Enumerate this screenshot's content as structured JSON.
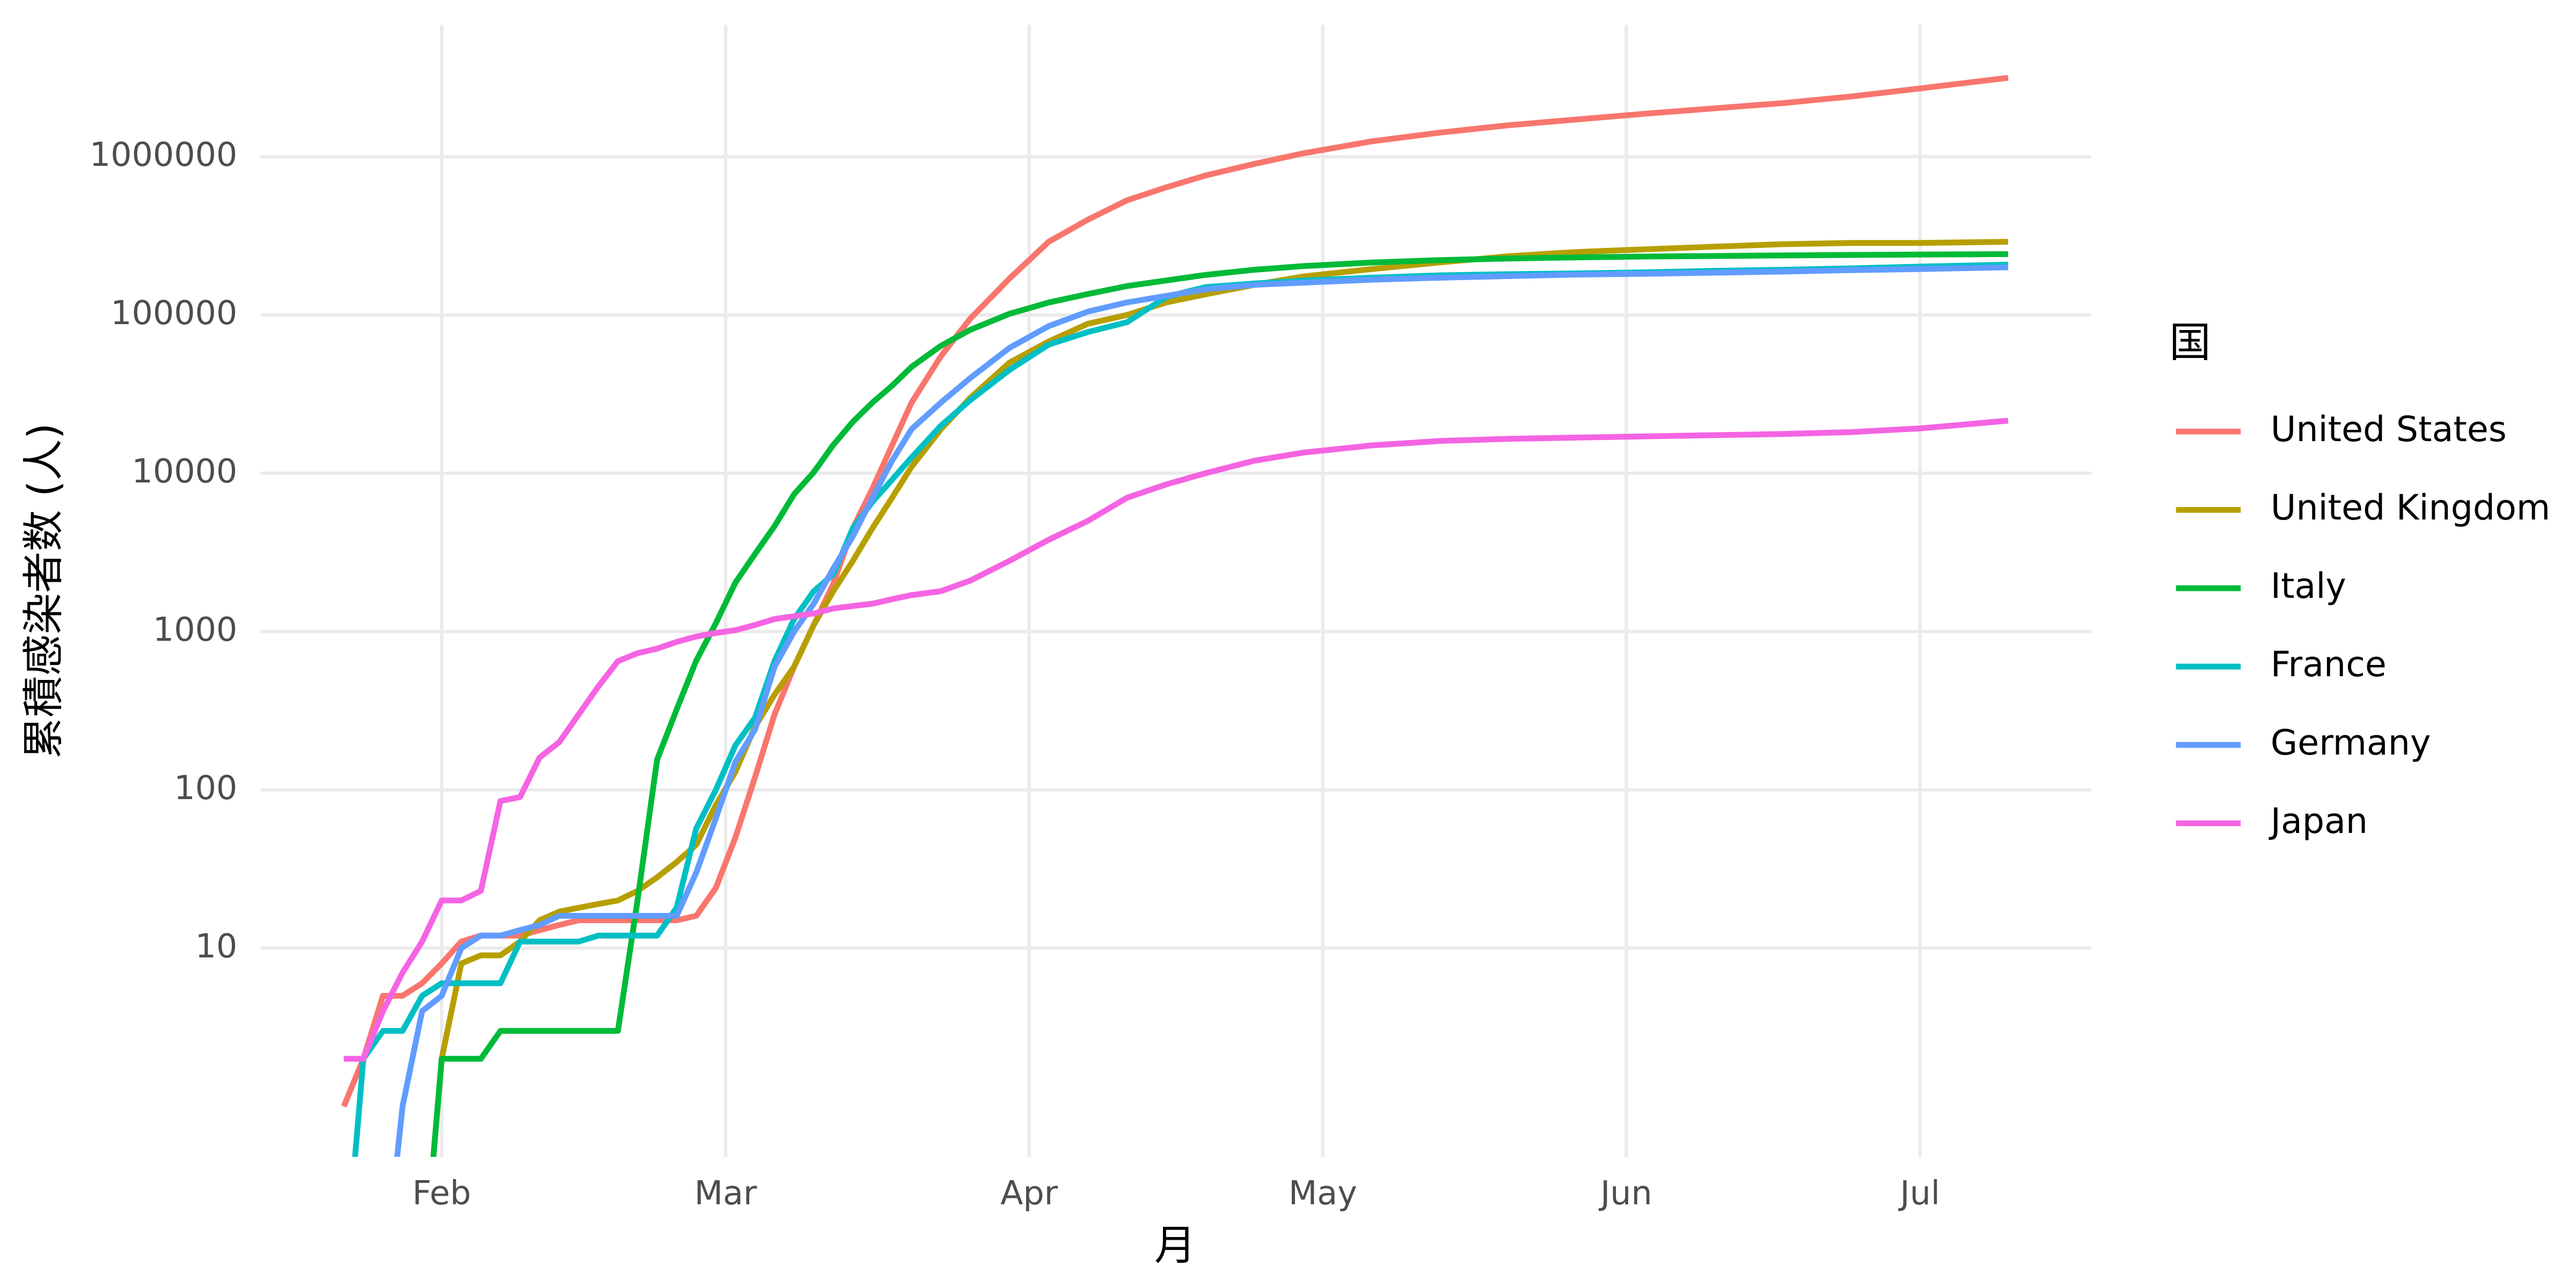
{
  "chart_data": {
    "type": "line",
    "x_label": "月",
    "y_label": "累積感染者数 (人)",
    "legend_title": "国",
    "legend_position": "right",
    "log_y": true,
    "grid": true,
    "x": [
      22,
      24,
      26,
      28,
      30,
      32,
      34,
      36,
      38,
      40,
      42,
      44,
      46,
      48,
      50,
      52,
      54,
      56,
      58,
      60,
      62,
      64,
      66,
      68,
      70,
      72,
      74,
      76,
      78,
      80,
      83,
      86,
      90,
      94,
      98,
      102,
      106,
      110,
      115,
      120,
      127,
      134,
      141,
      148,
      155,
      162,
      169,
      176,
      183,
      192
    ],
    "xlim": [
      13.5,
      200.5
    ],
    "xticks": [
      {
        "value": 32,
        "label": "Feb"
      },
      {
        "value": 61,
        "label": "Mar"
      },
      {
        "value": 92,
        "label": "Apr"
      },
      {
        "value": 122,
        "label": "May"
      },
      {
        "value": 153,
        "label": "Jun"
      },
      {
        "value": 183,
        "label": "Jul"
      }
    ],
    "ylim": [
      0.48,
      6800000
    ],
    "yticks": [
      10,
      100,
      1000,
      10000,
      100000,
      1000000
    ],
    "series": [
      {
        "name": "United States",
        "color": "#f8766d",
        "values": [
          1,
          2,
          5,
          5,
          6,
          8,
          11,
          12,
          12,
          12,
          13,
          14,
          15,
          15,
          15,
          15,
          15,
          15,
          16,
          24,
          50,
          120,
          300,
          600,
          1100,
          2000,
          4500,
          8000,
          15000,
          28000,
          55000,
          95000,
          170000,
          290000,
          400000,
          530000,
          640000,
          760000,
          900000,
          1050000,
          1250000,
          1420000,
          1580000,
          1720000,
          1870000,
          2020000,
          2180000,
          2400000,
          2700000,
          3150000
        ]
      },
      {
        "name": "United Kingdom",
        "color": "#b79f00",
        "values": [
          0,
          0,
          0,
          0,
          0,
          2,
          8,
          9,
          9,
          11,
          15,
          17,
          18,
          19,
          20,
          23,
          28,
          35,
          45,
          80,
          130,
          250,
          400,
          600,
          1100,
          1800,
          2800,
          4500,
          7000,
          11000,
          19000,
          30000,
          50000,
          68000,
          88000,
          100000,
          120000,
          135000,
          155000,
          175000,
          195000,
          215000,
          235000,
          250000,
          260000,
          270000,
          280000,
          285000,
          285000,
          290000
        ]
      },
      {
        "name": "Italy",
        "color": "#00ba38",
        "values": [
          0,
          0,
          0,
          0,
          0,
          2,
          2,
          2,
          3,
          3,
          3,
          3,
          3,
          3,
          3,
          20,
          155,
          322,
          655,
          1128,
          2036,
          3089,
          4636,
          7375,
          10149,
          15113,
          21157,
          27980,
          35713,
          47021,
          63927,
          80589,
          101739,
          119827,
          135586,
          152271,
          165155,
          178972,
          192994,
          203591,
          214457,
          222104,
          227364,
          231139,
          234013,
          235763,
          237828,
          239410,
          240760,
          242363
        ]
      },
      {
        "name": "France",
        "color": "#00bfc4",
        "values": [
          0,
          2,
          3,
          3,
          5,
          6,
          6,
          6,
          6,
          11,
          11,
          11,
          11,
          12,
          12,
          12,
          12,
          18,
          57,
          100,
          191,
          285,
          653,
          1200,
          1800,
          2300,
          4500,
          6600,
          9100,
          12600,
          20000,
          29000,
          45000,
          65000,
          78000,
          90000,
          130000,
          150000,
          158000,
          165000,
          172000,
          178000,
          181000,
          183000,
          186000,
          190000,
          193000,
          197000,
          202000,
          208000
        ]
      },
      {
        "name": "Germany",
        "color": "#619cff",
        "values": [
          0,
          0,
          0,
          1,
          4,
          5,
          10,
          12,
          12,
          13,
          14,
          16,
          16,
          16,
          16,
          16,
          16,
          16,
          30,
          66,
          150,
          240,
          600,
          1000,
          1500,
          2500,
          4000,
          7000,
          12000,
          19000,
          28000,
          40000,
          62000,
          85000,
          105000,
          120000,
          132000,
          145000,
          155000,
          160000,
          167000,
          172000,
          176000,
          180000,
          182000,
          185000,
          188000,
          192000,
          195000,
          200000
        ]
      },
      {
        "name": "Japan",
        "color": "#f564e3",
        "values": [
          2,
          2,
          4,
          7,
          11,
          20,
          20,
          23,
          85,
          90,
          160,
          200,
          300,
          450,
          650,
          730,
          780,
          860,
          930,
          980,
          1020,
          1100,
          1200,
          1250,
          1300,
          1400,
          1450,
          1500,
          1600,
          1700,
          1800,
          2100,
          2800,
          3800,
          5000,
          7000,
          8500,
          10000,
          12000,
          13500,
          15000,
          16000,
          16500,
          16800,
          17100,
          17400,
          17700,
          18200,
          19200,
          21500
        ]
      }
    ]
  }
}
